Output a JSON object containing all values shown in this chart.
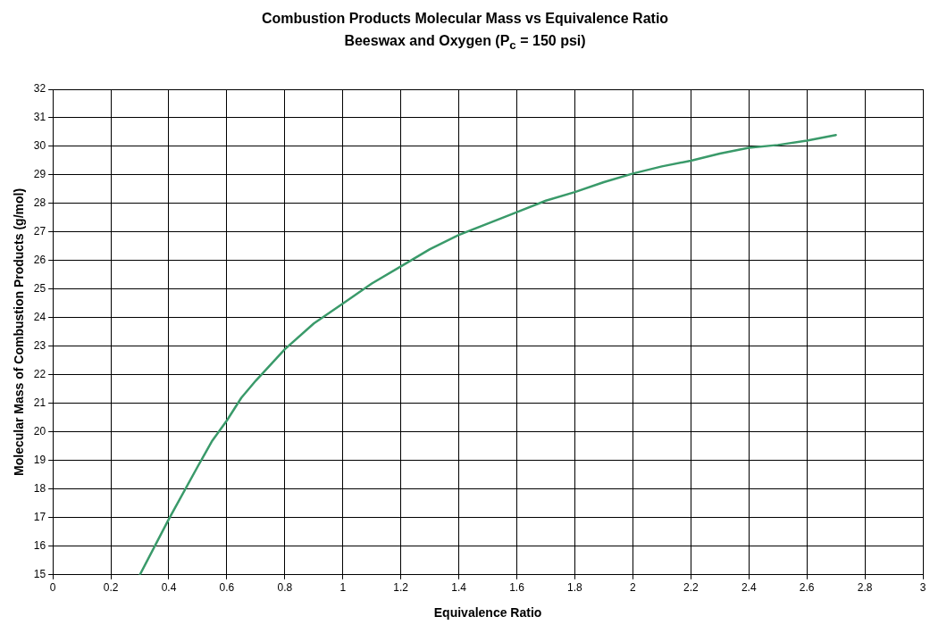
{
  "chart_data": {
    "type": "line",
    "title": "Combustion Products Molecular Mass vs Equivalence Ratio",
    "subtitle": "Beeswax and Oxygen (P$_{c}$ = 150 psi)",
    "xlabel": "Equivalence Ratio",
    "ylabel": "Molecular Mass of Combustion Products (g/mol)",
    "x": [
      0.3,
      0.4,
      0.5,
      0.55,
      0.6,
      0.65,
      0.7,
      0.8,
      0.9,
      1.0,
      1.1,
      1.2,
      1.3,
      1.4,
      1.5,
      1.6,
      1.7,
      1.8,
      1.9,
      2.0,
      2.1,
      2.2,
      2.3,
      2.4,
      2.5,
      2.6,
      2.7
    ],
    "series": [
      {
        "color": "#3a9a6a",
        "values": [
          15.0,
          16.95,
          18.8,
          19.7,
          20.4,
          21.2,
          21.8,
          22.9,
          23.8,
          24.5,
          25.2,
          25.8,
          26.4,
          26.9,
          27.3,
          27.7,
          28.1,
          28.4,
          28.75,
          29.05,
          29.3,
          29.5,
          29.75,
          29.95,
          30.05,
          30.2,
          30.4
        ]
      }
    ],
    "xlim": [
      0,
      3
    ],
    "xticks": [
      0,
      0.2,
      0.4,
      0.6,
      0.8,
      1,
      1.2,
      1.4,
      1.6,
      1.8,
      2,
      2.2,
      2.4,
      2.6,
      2.8,
      3
    ],
    "ylim": [
      15,
      32
    ],
    "yticks": [
      15,
      16,
      17,
      18,
      19,
      20,
      21,
      22,
      23,
      24,
      25,
      26,
      27,
      28,
      29,
      30,
      31,
      32
    ],
    "grid": true,
    "legend": false,
    "marker": "none",
    "line_style": "solid"
  }
}
